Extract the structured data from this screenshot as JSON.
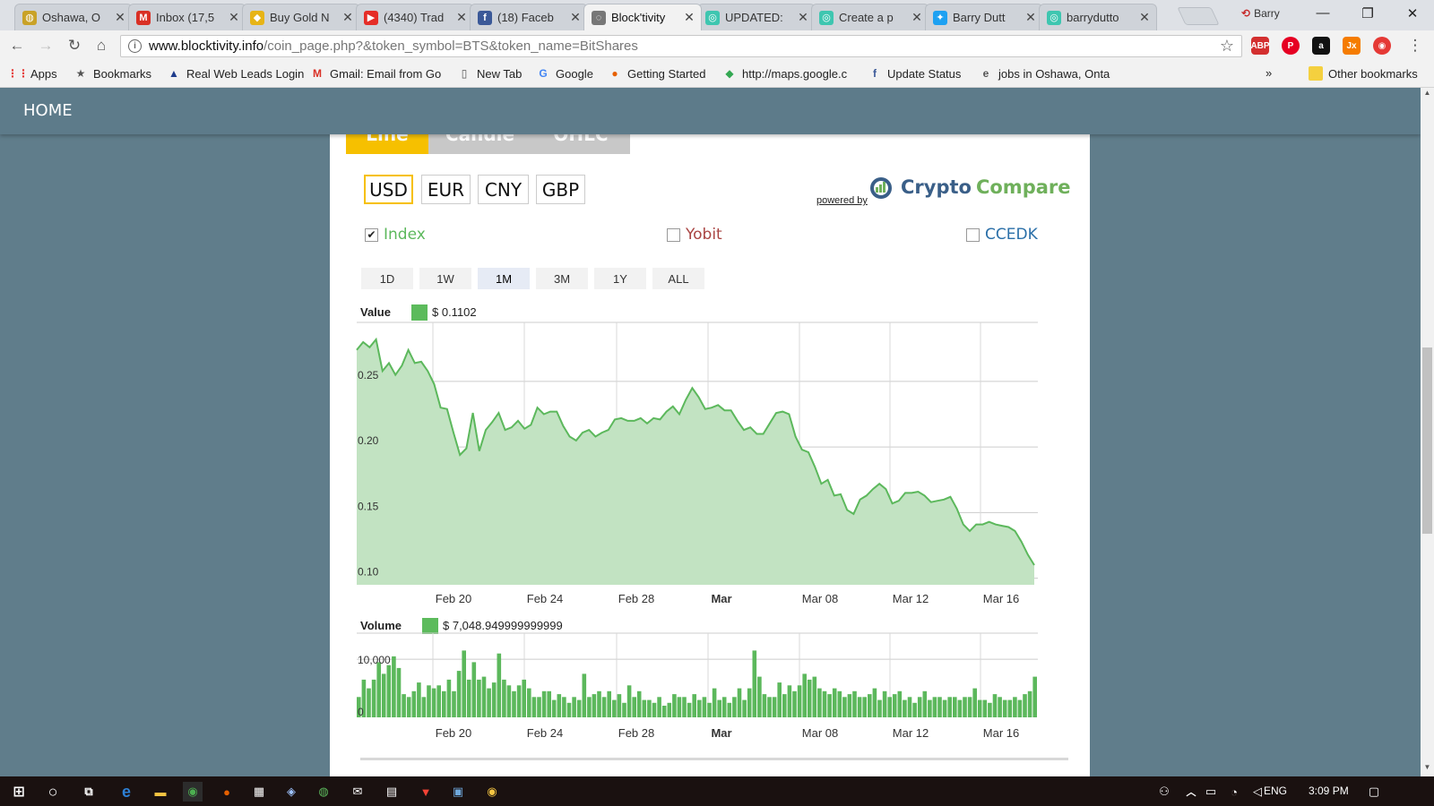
{
  "browser": {
    "tabs": [
      {
        "title": "Oshawa, O",
        "icon": "oshawa-globe-icon",
        "color": "#c9a227",
        "glyph": "◍"
      },
      {
        "title": "Inbox (17,5",
        "icon": "gmail-icon",
        "color": "#d93025",
        "glyph": "M"
      },
      {
        "title": "Buy Gold N",
        "icon": "gold-icon",
        "color": "#e7b416",
        "glyph": "◆"
      },
      {
        "title": "(4340) Trad",
        "icon": "youtube-icon",
        "color": "#e52d27",
        "glyph": "▶"
      },
      {
        "title": "(18) Faceb",
        "icon": "facebook-icon",
        "color": "#3b5998",
        "glyph": "f"
      },
      {
        "title": "Block'tivity",
        "icon": "loading-icon",
        "color": "#777777",
        "glyph": "◌"
      },
      {
        "title": "UPDATED:",
        "icon": "chat-bubble-icon",
        "color": "#3ec6b0",
        "glyph": "◎"
      },
      {
        "title": "Create a p",
        "icon": "chat-bubble-icon",
        "color": "#3ec6b0",
        "glyph": "◎"
      },
      {
        "title": "Barry Dutt",
        "icon": "twitter-icon",
        "color": "#1da1f2",
        "glyph": "✦"
      },
      {
        "title": "barrydutto",
        "icon": "chat-bubble-icon",
        "color": "#3ec6b0",
        "glyph": "◎"
      }
    ],
    "active_tab": 5,
    "profile_name": "Barry",
    "url_host": "www.blocktivity.info",
    "url_path": "/coin_page.php?&token_symbol=BTS&token_name=BitShares",
    "bookmarks": [
      {
        "label": "Apps",
        "icon": "apps-grid-icon",
        "glyph": "⋮⋮",
        "color": "#e53935"
      },
      {
        "label": "Bookmarks",
        "icon": "star-icon",
        "glyph": "★",
        "color": "#555555"
      },
      {
        "label": "Real Web Leads Login",
        "icon": "real-web-leads-icon",
        "glyph": "▲",
        "color": "#1e3c8c"
      },
      {
        "label": "Gmail: Email from Go",
        "icon": "gmail-icon",
        "glyph": "M",
        "color": "#d93025"
      },
      {
        "label": "New Tab",
        "icon": "page-icon",
        "glyph": "▯",
        "color": "#555555"
      },
      {
        "label": "Google",
        "icon": "google-icon",
        "glyph": "G",
        "color": "#4285f4"
      },
      {
        "label": "Getting Started",
        "icon": "firefox-icon",
        "glyph": "●",
        "color": "#e66000"
      },
      {
        "label": "http://maps.google.c",
        "icon": "maps-icon",
        "glyph": "◆",
        "color": "#34a853"
      },
      {
        "label": "Update Status",
        "icon": "facebook-icon",
        "glyph": "f",
        "color": "#3b5998"
      },
      {
        "label": "jobs in Oshawa, Onta",
        "icon": "ie-icon",
        "glyph": "e",
        "color": "#555555"
      }
    ],
    "other_bookmarks": "Other bookmarks",
    "overflow": "»"
  },
  "site": {
    "nav_home": "HOME"
  },
  "chart_panel": {
    "chart_types": [
      "Line",
      "Candle",
      "OHLC"
    ],
    "currencies": [
      "USD",
      "EUR",
      "CNY",
      "GBP"
    ],
    "selected_currency": "USD",
    "logo_part1": "Crypto",
    "logo_part2": "Compare",
    "powered_by": "powered by",
    "exchanges": [
      {
        "label": "Index",
        "checked": true,
        "color": "#5cb85c"
      },
      {
        "label": "Yobit",
        "checked": false,
        "color": "#a94442"
      },
      {
        "label": "CCEDK",
        "checked": false,
        "color": "#2a6fa8"
      }
    ],
    "ranges": [
      "1D",
      "1W",
      "1M",
      "3M",
      "1Y",
      "ALL"
    ],
    "selected_range": "1M",
    "value_label": "Value",
    "value_readout": "$ 0.1102",
    "volume_label": "Volume",
    "volume_readout": "$ 7,048.949999999999"
  },
  "chart_data": [
    {
      "type": "area",
      "title": "Value",
      "x_ticks": [
        "Feb 20",
        "Feb 24",
        "Feb 28",
        "Mar",
        "Mar 08",
        "Mar 12",
        "Mar 16"
      ],
      "x_tick_bold": [
        false,
        false,
        false,
        true,
        false,
        false,
        false
      ],
      "y_ticks": [
        "0.10",
        "0.15",
        "0.20",
        "0.25"
      ],
      "ylim": [
        0.095,
        0.295
      ],
      "grid": true,
      "color": "#5cb85c",
      "fill": "#c2e3c2",
      "values": [
        0.274,
        0.28,
        0.276,
        0.282,
        0.258,
        0.264,
        0.255,
        0.262,
        0.274,
        0.264,
        0.265,
        0.258,
        0.248,
        0.23,
        0.229,
        0.211,
        0.194,
        0.199,
        0.226,
        0.197,
        0.213,
        0.219,
        0.226,
        0.213,
        0.215,
        0.22,
        0.214,
        0.217,
        0.23,
        0.225,
        0.227,
        0.227,
        0.216,
        0.208,
        0.205,
        0.211,
        0.213,
        0.208,
        0.211,
        0.213,
        0.221,
        0.222,
        0.22,
        0.22,
        0.222,
        0.218,
        0.222,
        0.221,
        0.227,
        0.231,
        0.225,
        0.236,
        0.245,
        0.238,
        0.229,
        0.23,
        0.232,
        0.228,
        0.228,
        0.22,
        0.213,
        0.215,
        0.21,
        0.21,
        0.218,
        0.226,
        0.227,
        0.225,
        0.208,
        0.198,
        0.196,
        0.185,
        0.172,
        0.175,
        0.163,
        0.164,
        0.152,
        0.149,
        0.16,
        0.163,
        0.168,
        0.172,
        0.168,
        0.157,
        0.159,
        0.165,
        0.165,
        0.166,
        0.163,
        0.158,
        0.159,
        0.16,
        0.162,
        0.153,
        0.141,
        0.136,
        0.141,
        0.141,
        0.143,
        0.141,
        0.14,
        0.139,
        0.136,
        0.128,
        0.118,
        0.11
      ]
    },
    {
      "type": "bar",
      "title": "Volume",
      "x_ticks": [
        "Feb 20",
        "Feb 24",
        "Feb 28",
        "Mar",
        "Mar 08",
        "Mar 12",
        "Mar 16"
      ],
      "x_tick_bold": [
        false,
        false,
        false,
        true,
        false,
        false,
        false
      ],
      "y_ticks": [
        "0",
        "10,000"
      ],
      "ylim": [
        0,
        14500
      ],
      "grid": true,
      "color": "#5cb85c",
      "values": [
        3500,
        6500,
        5000,
        6500,
        9500,
        7500,
        9000,
        10500,
        8500,
        4000,
        3500,
        4500,
        6000,
        3500,
        5500,
        5000,
        5500,
        4500,
        6500,
        4500,
        8000,
        11500,
        6500,
        9500,
        6500,
        7000,
        5000,
        6000,
        11000,
        6500,
        5500,
        4500,
        5500,
        6500,
        5000,
        3500,
        3500,
        4500,
        4500,
        3000,
        4000,
        3500,
        2500,
        3500,
        3000,
        7500,
        3500,
        4000,
        4500,
        3500,
        4500,
        3000,
        4000,
        2500,
        5500,
        3500,
        4500,
        3000,
        3000,
        2500,
        3500,
        2000,
        2500,
        4000,
        3500,
        3500,
        2500,
        4000,
        3000,
        3500,
        2500,
        5000,
        3000,
        3500,
        2500,
        3500,
        5000,
        3000,
        5000,
        11500,
        7000,
        4000,
        3500,
        3500,
        6000,
        4000,
        5500,
        4500,
        5500,
        7500,
        6500,
        7000,
        5000,
        4500,
        4000,
        5000,
        4500,
        3500,
        4000,
        4500,
        3500,
        3500,
        4000,
        5000,
        3000,
        4500,
        3500,
        4000,
        4500,
        3000,
        3500,
        2500,
        3500,
        4500,
        3000,
        3500,
        3500,
        3000,
        3500,
        3500,
        3000,
        3500,
        3500,
        5000,
        3000,
        3000,
        2500,
        4000,
        3500,
        3000,
        3000,
        3500,
        3000,
        4000,
        4500,
        7000
      ]
    }
  ],
  "system": {
    "language": "ENG",
    "time": "3:09 PM"
  }
}
